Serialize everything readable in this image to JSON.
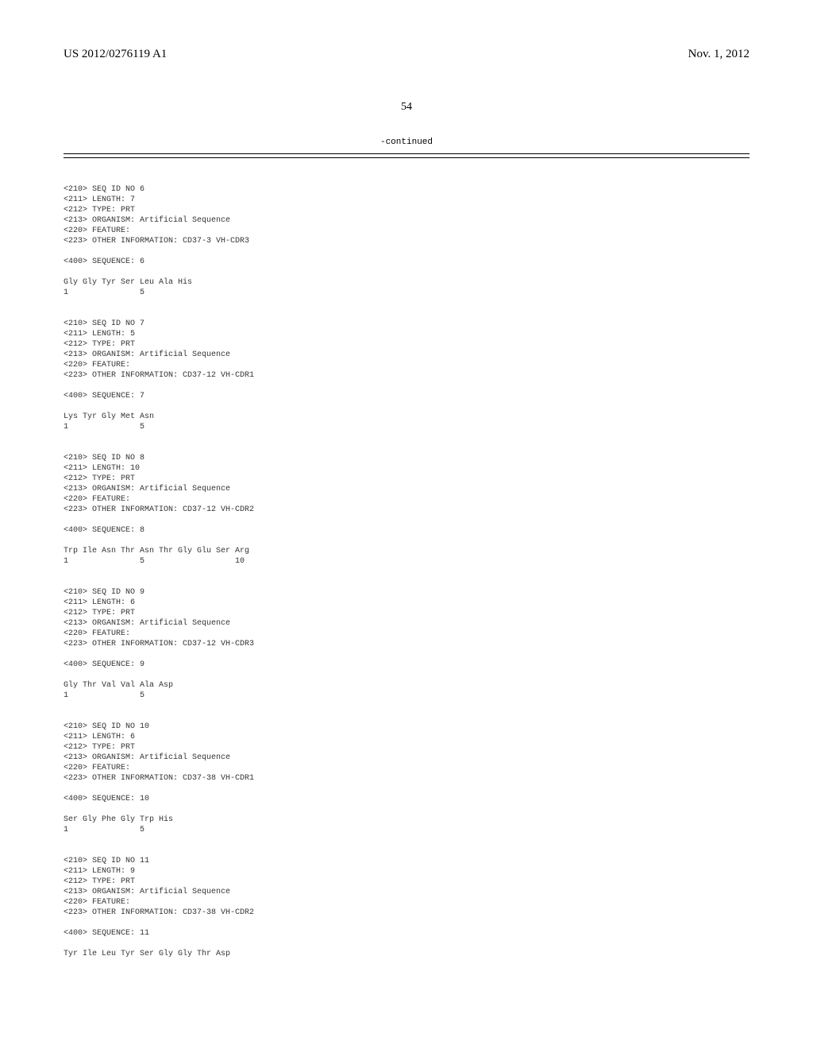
{
  "header": {
    "pub_number": "US 2012/0276119 A1",
    "pub_date": "Nov. 1, 2012"
  },
  "page_number": "54",
  "continued_label": "-continued",
  "sequences": [
    {
      "meta": [
        "<210> SEQ ID NO 6",
        "<211> LENGTH: 7",
        "<212> TYPE: PRT",
        "<213> ORGANISM: Artificial Sequence",
        "<220> FEATURE:",
        "<223> OTHER INFORMATION: CD37-3 VH-CDR3"
      ],
      "sequence_header": "<400> SEQUENCE: 6",
      "residues": "Gly Gly Tyr Ser Leu Ala His",
      "positions": "1               5"
    },
    {
      "meta": [
        "<210> SEQ ID NO 7",
        "<211> LENGTH: 5",
        "<212> TYPE: PRT",
        "<213> ORGANISM: Artificial Sequence",
        "<220> FEATURE:",
        "<223> OTHER INFORMATION: CD37-12 VH-CDR1"
      ],
      "sequence_header": "<400> SEQUENCE: 7",
      "residues": "Lys Tyr Gly Met Asn",
      "positions": "1               5"
    },
    {
      "meta": [
        "<210> SEQ ID NO 8",
        "<211> LENGTH: 10",
        "<212> TYPE: PRT",
        "<213> ORGANISM: Artificial Sequence",
        "<220> FEATURE:",
        "<223> OTHER INFORMATION: CD37-12 VH-CDR2"
      ],
      "sequence_header": "<400> SEQUENCE: 8",
      "residues": "Trp Ile Asn Thr Asn Thr Gly Glu Ser Arg",
      "positions": "1               5                   10"
    },
    {
      "meta": [
        "<210> SEQ ID NO 9",
        "<211> LENGTH: 6",
        "<212> TYPE: PRT",
        "<213> ORGANISM: Artificial Sequence",
        "<220> FEATURE:",
        "<223> OTHER INFORMATION: CD37-12 VH-CDR3"
      ],
      "sequence_header": "<400> SEQUENCE: 9",
      "residues": "Gly Thr Val Val Ala Asp",
      "positions": "1               5"
    },
    {
      "meta": [
        "<210> SEQ ID NO 10",
        "<211> LENGTH: 6",
        "<212> TYPE: PRT",
        "<213> ORGANISM: Artificial Sequence",
        "<220> FEATURE:",
        "<223> OTHER INFORMATION: CD37-38 VH-CDR1"
      ],
      "sequence_header": "<400> SEQUENCE: 10",
      "residues": "Ser Gly Phe Gly Trp His",
      "positions": "1               5"
    },
    {
      "meta": [
        "<210> SEQ ID NO 11",
        "<211> LENGTH: 9",
        "<212> TYPE: PRT",
        "<213> ORGANISM: Artificial Sequence",
        "<220> FEATURE:",
        "<223> OTHER INFORMATION: CD37-38 VH-CDR2"
      ],
      "sequence_header": "<400> SEQUENCE: 11",
      "residues": "Tyr Ile Leu Tyr Ser Gly Gly Thr Asp",
      "positions": ""
    }
  ]
}
